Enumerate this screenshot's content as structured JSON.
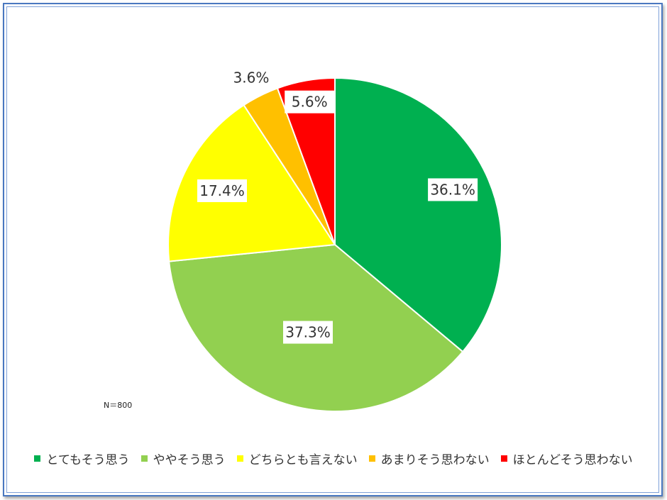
{
  "chart_data": {
    "type": "pie",
    "categories": [
      "とてもそう思う",
      "ややそう思う",
      "どちらとも言えない",
      "あまりそう思わない",
      "ほとんどそう思わない"
    ],
    "values": [
      36.1,
      37.3,
      17.4,
      3.6,
      5.6
    ],
    "value_labels": [
      "36.1%",
      "37.3%",
      "17.4%",
      "3.6%",
      "5.6%"
    ],
    "colors": [
      "#00b050",
      "#92d050",
      "#ffff00",
      "#ffc000",
      "#ff0000"
    ],
    "start": "12 o'clock, clockwise",
    "legend_position": "bottom",
    "note": "N＝800"
  }
}
